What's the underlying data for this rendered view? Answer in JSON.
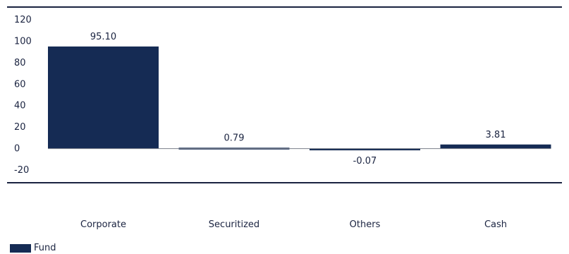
{
  "chart_data": {
    "type": "bar",
    "categories": [
      "Corporate",
      "Securitized",
      "Others",
      "Cash"
    ],
    "series": [
      {
        "name": "Fund",
        "values": [
          95.1,
          0.79,
          -0.07,
          3.81
        ],
        "color": "#152b54"
      }
    ],
    "data_labels": [
      "95.10",
      "0.79",
      "-0.07",
      "3.81"
    ],
    "y_ticks": [
      120,
      100,
      80,
      60,
      40,
      20,
      0,
      -20
    ],
    "ylim": [
      -20,
      120
    ],
    "grid": false,
    "legend_position": "bottom-left",
    "title": "",
    "xlabel": "",
    "ylabel": ""
  }
}
